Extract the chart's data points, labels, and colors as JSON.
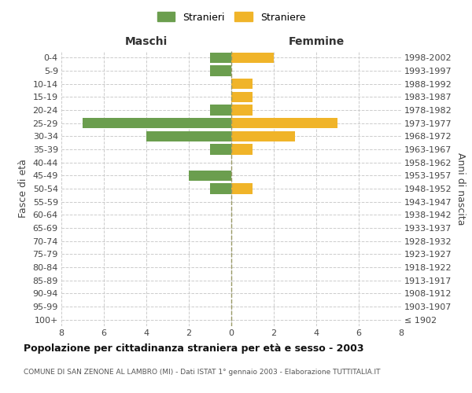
{
  "age_groups": [
    "100+",
    "95-99",
    "90-94",
    "85-89",
    "80-84",
    "75-79",
    "70-74",
    "65-69",
    "60-64",
    "55-59",
    "50-54",
    "45-49",
    "40-44",
    "35-39",
    "30-34",
    "25-29",
    "20-24",
    "15-19",
    "10-14",
    "5-9",
    "0-4"
  ],
  "birth_years": [
    "≤ 1902",
    "1903-1907",
    "1908-1912",
    "1913-1917",
    "1918-1922",
    "1923-1927",
    "1928-1932",
    "1933-1937",
    "1938-1942",
    "1943-1947",
    "1948-1952",
    "1953-1957",
    "1958-1962",
    "1963-1967",
    "1968-1972",
    "1973-1977",
    "1978-1982",
    "1983-1987",
    "1988-1992",
    "1993-1997",
    "1998-2002"
  ],
  "maschi": [
    0,
    0,
    0,
    0,
    0,
    0,
    0,
    0,
    0,
    0,
    1,
    2,
    0,
    1,
    4,
    7,
    1,
    0,
    0,
    1,
    1
  ],
  "femmine": [
    0,
    0,
    0,
    0,
    0,
    0,
    0,
    0,
    0,
    0,
    1,
    0,
    0,
    1,
    3,
    5,
    1,
    1,
    1,
    0,
    2
  ],
  "color_maschi": "#6b9e4e",
  "color_femmine": "#f0b429",
  "title_main": "Popolazione per cittadinanza straniera per età e sesso - 2003",
  "title_sub": "COMUNE DI SAN ZENONE AL LAMBRO (MI) - Dati ISTAT 1° gennaio 2003 - Elaborazione TUTTITALIA.IT",
  "xlabel_left": "Maschi",
  "xlabel_right": "Femmine",
  "ylabel_left": "Fasce di età",
  "ylabel_right": "Anni di nascita",
  "legend_maschi": "Stranieri",
  "legend_femmine": "Straniere",
  "xlim": 8,
  "xticks": [
    -8,
    -6,
    -4,
    -2,
    0,
    2,
    4,
    6,
    8
  ],
  "xticklabels": [
    "8",
    "6",
    "4",
    "2",
    "0",
    "2",
    "4",
    "6",
    "8"
  ],
  "bg_color": "#ffffff",
  "grid_color": "#cccccc",
  "bar_height": 0.8,
  "center_line_color": "#999966"
}
